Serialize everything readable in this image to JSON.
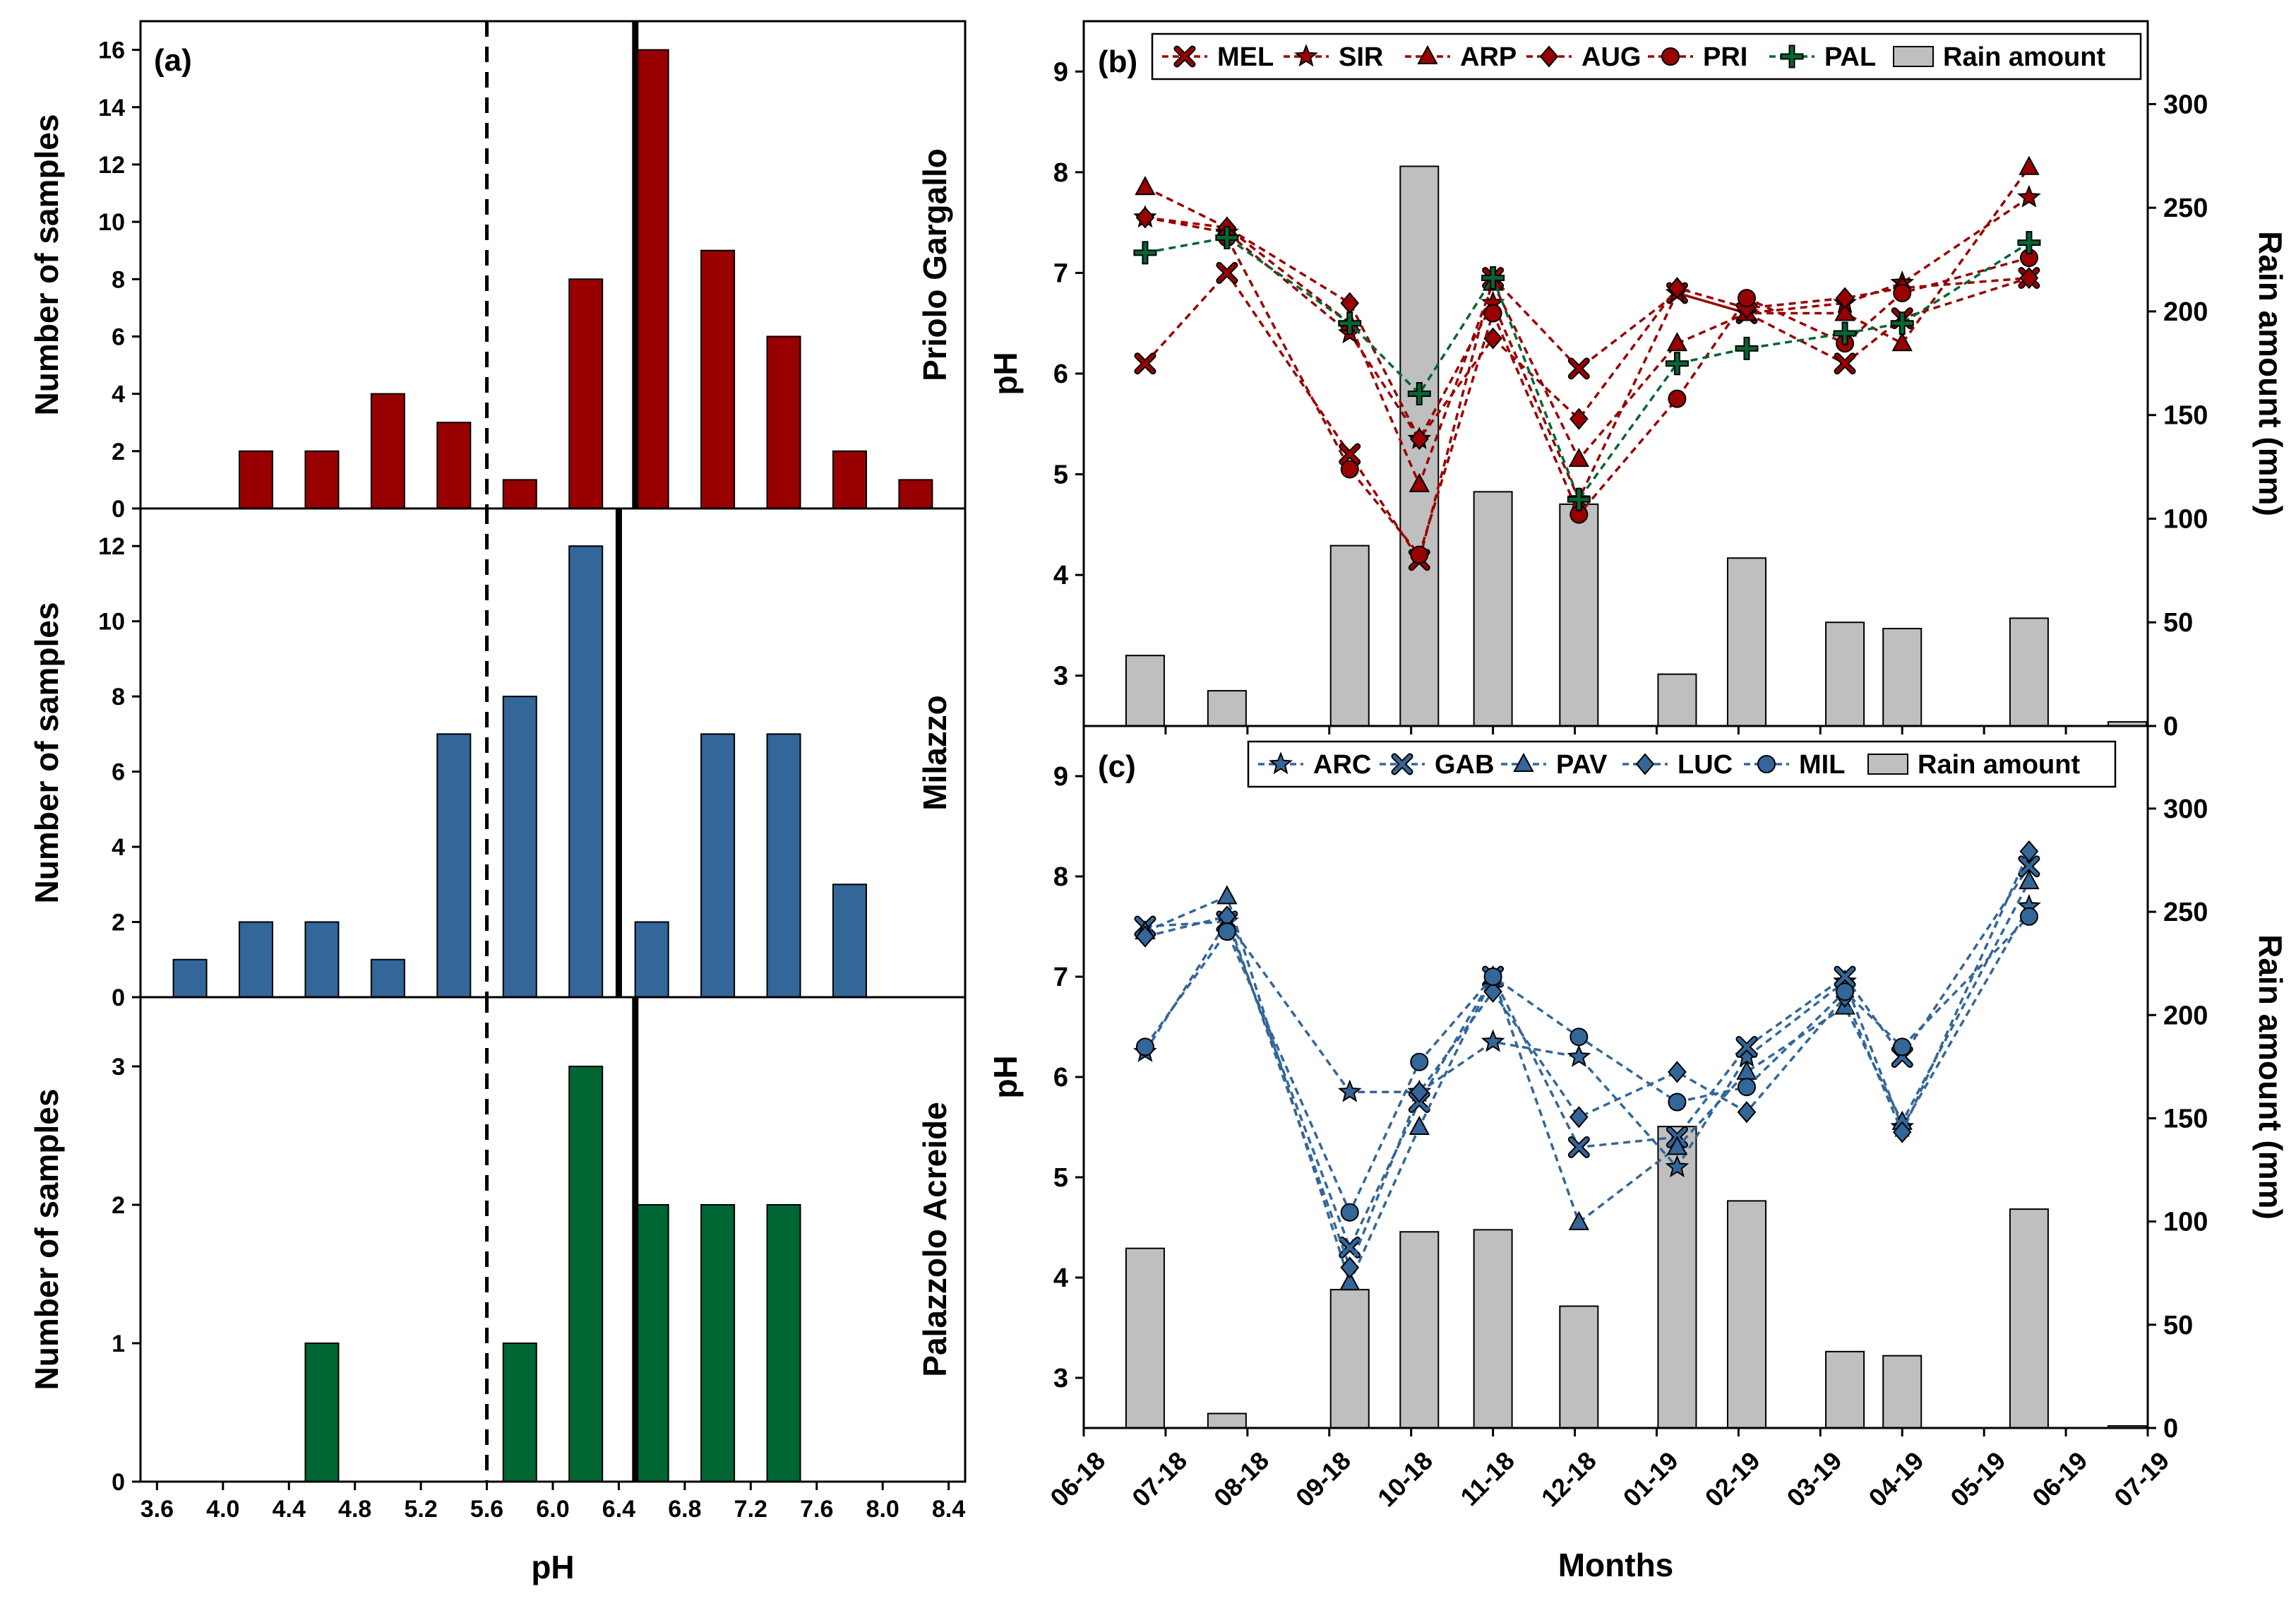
{
  "chart_data": [
    {
      "id": "a",
      "type": "bar",
      "panel_label": "(a)",
      "xlabel": "pH",
      "ylabel": "Number of samples",
      "x_ticks": [
        "3.6",
        "4.0",
        "4.4",
        "4.8",
        "5.2",
        "5.6",
        "6.0",
        "6.4",
        "6.8",
        "7.2",
        "7.6",
        "8.0",
        "8.4"
      ],
      "xlim": [
        3.5,
        8.5
      ],
      "reference_lines": [
        {
          "name": "dashed-reference",
          "style": "dashed",
          "x": 5.6
        },
        {
          "name": "solid-reference",
          "style": "solid",
          "x": 6.5
        }
      ],
      "subplots": [
        {
          "site": "Priolo Gargallo",
          "color": "#990000",
          "ylim": [
            0,
            17
          ],
          "y_ticks": [
            "0",
            "2",
            "4",
            "6",
            "8",
            "10",
            "12",
            "14",
            "16"
          ],
          "solid_line_x": 6.5,
          "bins": [
            3.8,
            4.2,
            4.6,
            5.0,
            5.4,
            5.8,
            6.2,
            6.6,
            7.0,
            7.4,
            7.8,
            8.2
          ],
          "values": [
            0,
            2,
            2,
            4,
            3,
            1,
            8,
            16,
            9,
            6,
            2,
            1
          ]
        },
        {
          "site": "Milazzo",
          "color": "#336699",
          "ylim": [
            0,
            13
          ],
          "y_ticks": [
            "0",
            "2",
            "4",
            "6",
            "8",
            "10",
            "12"
          ],
          "solid_line_x": 6.4,
          "bins": [
            3.8,
            4.2,
            4.6,
            5.0,
            5.4,
            5.8,
            6.2,
            6.6,
            7.0,
            7.4,
            7.8,
            8.2
          ],
          "values": [
            1,
            2,
            2,
            1,
            7,
            8,
            12,
            2,
            7,
            7,
            3,
            0
          ]
        },
        {
          "site": "Palazzolo Acreide",
          "color": "#006633",
          "ylim": [
            0,
            3.5
          ],
          "y_ticks": [
            "0",
            "1",
            "2",
            "3"
          ],
          "solid_line_x": 6.5,
          "bins": [
            3.8,
            4.2,
            4.6,
            5.0,
            5.4,
            5.8,
            6.2,
            6.6,
            7.0,
            7.4,
            7.8,
            8.2
          ],
          "values": [
            0,
            0,
            1,
            0,
            0,
            1,
            3,
            2,
            2,
            2,
            0,
            0
          ]
        }
      ]
    },
    {
      "id": "b",
      "type": "line",
      "panel_label": "(b)",
      "ylabel": "pH",
      "y2label": "Rain amount (mm)",
      "ylim": [
        2.5,
        9.5
      ],
      "y_ticks": [
        "3",
        "4",
        "5",
        "6",
        "7",
        "8",
        "9"
      ],
      "y2lim": [
        0,
        340
      ],
      "y2_ticks": [
        "0",
        "50",
        "100",
        "150",
        "200",
        "250",
        "300"
      ],
      "x_ticks": [
        "06-18",
        "07-18",
        "08-18",
        "09-18",
        "10-18",
        "11-18",
        "12-18",
        "01-19",
        "02-19",
        "03-19",
        "04-19",
        "05-19",
        "06-19",
        "07-19"
      ],
      "xlim": [
        0,
        13
      ],
      "x": [
        0.75,
        1.75,
        3.25,
        4.1,
        5.0,
        6.05,
        7.25,
        8.1,
        9.3,
        10.0,
        11.55
      ],
      "rain": {
        "name": "Rain amount",
        "x": [
          0.75,
          1.75,
          3.25,
          4.1,
          5.0,
          6.05,
          7.25,
          8.1,
          9.3,
          10.0,
          11.55,
          12.75
        ],
        "values": [
          34,
          17,
          87,
          270,
          113,
          107,
          25,
          81,
          50,
          47,
          52,
          2
        ]
      },
      "series": [
        {
          "name": "MEL",
          "color": "#990000",
          "marker": "x",
          "values": [
            6.1,
            7.0,
            5.2,
            4.15,
            6.95,
            6.05,
            6.8,
            6.6,
            6.1,
            6.55,
            6.95
          ]
        },
        {
          "name": "SIR",
          "color": "#990000",
          "marker": "star",
          "values": [
            7.55,
            7.4,
            6.4,
            5.35,
            6.7,
            4.75,
            6.8,
            6.6,
            6.7,
            6.9,
            7.75
          ]
        },
        {
          "name": "ARP",
          "color": "#990000",
          "marker": "triangle",
          "values": [
            7.85,
            7.45,
            6.5,
            4.9,
            6.9,
            5.15,
            6.3,
            6.6,
            6.6,
            6.3,
            8.05
          ]
        },
        {
          "name": "AUG",
          "color": "#990000",
          "marker": "diamond",
          "values": [
            7.55,
            7.45,
            6.7,
            5.35,
            6.35,
            5.55,
            6.85,
            6.65,
            6.75,
            6.85,
            6.95
          ]
        },
        {
          "name": "PRI",
          "color": "#990000",
          "marker": "circle",
          "values": [
            null,
            7.35,
            5.05,
            4.2,
            6.6,
            4.6,
            5.75,
            6.75,
            6.3,
            6.8,
            7.15
          ]
        },
        {
          "name": "PAL",
          "color": "#006633",
          "marker": "plus",
          "values": [
            7.2,
            7.35,
            6.5,
            5.8,
            6.95,
            4.75,
            6.1,
            6.25,
            6.4,
            6.5,
            7.3
          ]
        }
      ]
    },
    {
      "id": "c",
      "type": "line",
      "panel_label": "(c)",
      "xlabel": "Months",
      "ylabel": "pH",
      "y2label": "Rain amount (mm)",
      "ylim": [
        2.5,
        9.5
      ],
      "y_ticks": [
        "3",
        "4",
        "5",
        "6",
        "7",
        "8",
        "9"
      ],
      "y2lim": [
        0,
        340
      ],
      "y2_ticks": [
        "0",
        "50",
        "100",
        "150",
        "200",
        "250",
        "300"
      ],
      "x_ticks": [
        "06-18",
        "07-18",
        "08-18",
        "09-18",
        "10-18",
        "11-18",
        "12-18",
        "01-19",
        "02-19",
        "03-19",
        "04-19",
        "05-19",
        "06-19",
        "07-19"
      ],
      "xlim": [
        0,
        13
      ],
      "x": [
        0.75,
        1.75,
        3.25,
        4.1,
        5.0,
        6.05,
        7.25,
        8.1,
        9.3,
        10.0,
        11.55
      ],
      "rain": {
        "name": "Rain amount",
        "x": [
          0.75,
          1.75,
          3.25,
          4.1,
          5.0,
          6.05,
          7.25,
          8.1,
          9.3,
          10.0,
          11.55,
          12.75
        ],
        "values": [
          87,
          7,
          67,
          95,
          96,
          59,
          146,
          110,
          37,
          35,
          106,
          1
        ]
      },
      "series": [
        {
          "name": "ARC",
          "color": "#336699",
          "marker": "star",
          "values": [
            6.25,
            7.55,
            5.85,
            5.85,
            6.35,
            6.2,
            5.1,
            6.2,
            6.95,
            5.5,
            7.7
          ]
        },
        {
          "name": "GAB",
          "color": "#336699",
          "marker": "x",
          "values": [
            7.5,
            7.55,
            4.3,
            5.75,
            7.0,
            5.3,
            5.4,
            6.3,
            7.0,
            6.2,
            8.1
          ]
        },
        {
          "name": "PAV",
          "color": "#336699",
          "marker": "triangle",
          "values": [
            7.45,
            7.8,
            3.95,
            5.5,
            7.0,
            4.55,
            5.3,
            6.05,
            6.7,
            5.55,
            7.95
          ]
        },
        {
          "name": "LUC",
          "color": "#336699",
          "marker": "diamond",
          "values": [
            7.4,
            7.6,
            4.1,
            5.85,
            6.85,
            5.6,
            6.05,
            5.65,
            6.8,
            5.45,
            8.25
          ]
        },
        {
          "name": "MIL",
          "color": "#336699",
          "marker": "circle",
          "values": [
            6.3,
            7.45,
            4.65,
            6.15,
            7.0,
            6.4,
            5.75,
            5.9,
            6.85,
            6.3,
            7.6
          ]
        }
      ]
    }
  ]
}
